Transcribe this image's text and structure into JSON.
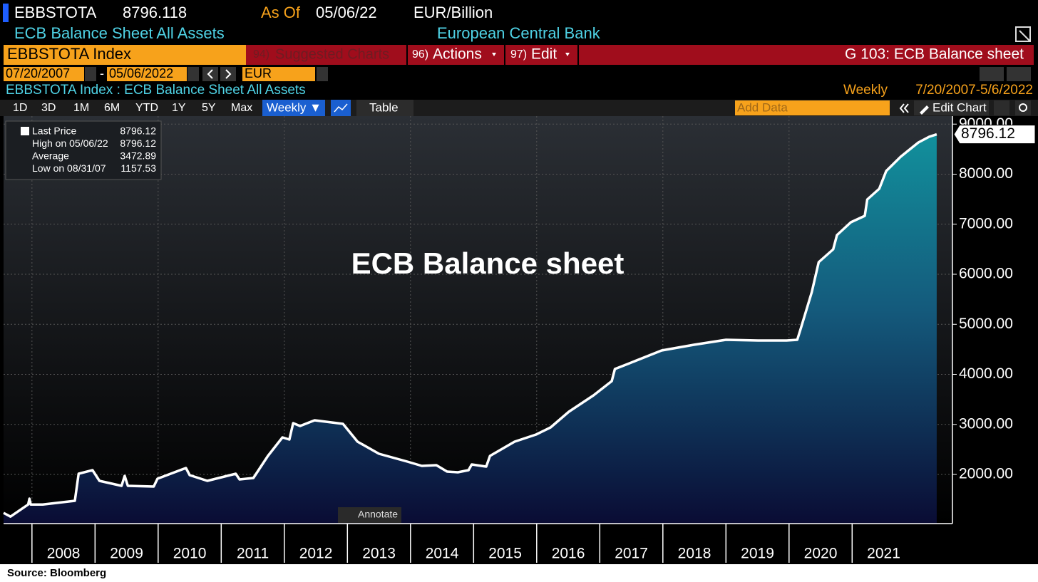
{
  "header": {
    "ticker": "EBBSTOTA",
    "price": 8796.118,
    "as_of_label": "As Of",
    "as_of_date": "05/06/22",
    "units": "EUR/Billion",
    "description": "ECB Balance Sheet All Assets",
    "source_name": "European Central Bank"
  },
  "menu": {
    "security": "EBBSTOTA Index",
    "suggested_num": "94)",
    "suggested": "Suggested Charts",
    "actions_num": "96)",
    "actions": "Actions",
    "edit_num": "97)",
    "edit": "Edit",
    "page_title": "G 103: ECB Balance sheet"
  },
  "date_range": {
    "start": "07/20/2007",
    "separator": "-",
    "end": "05/06/2022",
    "currency": "EUR"
  },
  "chart_header": {
    "title": "EBBSTOTA Index : ECB Balance Sheet All Assets",
    "frequency": "Weekly",
    "range": "7/20/2007-5/6/2022"
  },
  "toolbar": {
    "ranges": [
      "1D",
      "3D",
      "1M",
      "6M",
      "YTD",
      "1Y",
      "5Y",
      "Max"
    ],
    "frequency": "Weekly ▼",
    "table": "Table",
    "add_data": "Add Data",
    "edit_chart": "Edit Chart"
  },
  "legend": [
    {
      "label": "Last Price",
      "value": 8796.12
    },
    {
      "label": "High on 05/06/22",
      "value": 8796.12
    },
    {
      "label": "Average",
      "value": 3472.89
    },
    {
      "label": "Low on 08/31/07",
      "value": 1157.53
    }
  ],
  "chart_data": {
    "type": "area",
    "annotation": "ECB Balance sheet",
    "color": "#ffffff",
    "fill_top": "#12909c",
    "fill_bottom": "#0a0c34",
    "x": [
      2007.55,
      2007.66,
      2007.94,
      2007.96,
      2007.98,
      2008.17,
      2008.68,
      2008.74,
      2008.96,
      2009.07,
      2009.42,
      2009.47,
      2009.52,
      2009.93,
      2009.99,
      2010.44,
      2010.5,
      2010.78,
      2011.23,
      2011.29,
      2011.51,
      2011.74,
      2011.97,
      2012.08,
      2012.14,
      2012.25,
      2012.48,
      2012.93,
      2013.16,
      2013.5,
      2013.95,
      2014.18,
      2014.41,
      2014.58,
      2014.75,
      2014.92,
      2014.97,
      2015.2,
      2015.26,
      2015.65,
      2015.99,
      2016.22,
      2016.51,
      2016.9,
      2017.19,
      2017.24,
      2017.47,
      2017.98,
      2018.49,
      2019.0,
      2019.51,
      2019.96,
      2020.13,
      2020.19,
      2020.36,
      2020.47,
      2020.7,
      2020.76,
      2020.98,
      2021.2,
      2021.24,
      2021.43,
      2021.54,
      2021.77,
      2022.05,
      2022.22,
      2022.34
    ],
    "values": [
      1231,
      1157.53,
      1400,
      1516,
      1400,
      1400,
      1473,
      2014,
      2085,
      1872,
      1772,
      1972,
      1772,
      1758,
      1915,
      2128,
      1986,
      1872,
      2014,
      1900,
      1929,
      2370,
      2740,
      2698,
      3025,
      2968,
      3082,
      3011,
      2655,
      2413,
      2256,
      2171,
      2185,
      2057,
      2043,
      2085,
      2199,
      2157,
      2370,
      2655,
      2797,
      2940,
      3253,
      3580,
      3865,
      4107,
      4220,
      4477,
      4591,
      4690,
      4676,
      4676,
      4690,
      4932,
      5644,
      6242,
      6498,
      6783,
      7039,
      7167,
      7495,
      7708,
      8064,
      8349,
      8634,
      8747,
      8796.12
    ],
    "last_label": "8796.12",
    "xlim": [
      2007.55,
      2022.59
    ],
    "xticks": [
      2008,
      2009,
      2010,
      2011,
      2012,
      2013,
      2014,
      2015,
      2016,
      2017,
      2018,
      2019,
      2020,
      2021
    ],
    "ylim": [
      1018,
      9160
    ],
    "yticks": [
      {
        "value": 2000,
        "label": "2000.00"
      },
      {
        "value": 3000,
        "label": "3000.00"
      },
      {
        "value": 4000,
        "label": "4000.00"
      },
      {
        "value": 5000,
        "label": "5000.00"
      },
      {
        "value": 6000,
        "label": "6000.00"
      },
      {
        "value": 7000,
        "label": "7000.00"
      },
      {
        "value": 8000,
        "label": "8000.00"
      },
      {
        "value": 9000,
        "label": "9000.00"
      }
    ],
    "grid": true
  },
  "annotate_button": "Annotate",
  "footer": "Source: Bloomberg"
}
